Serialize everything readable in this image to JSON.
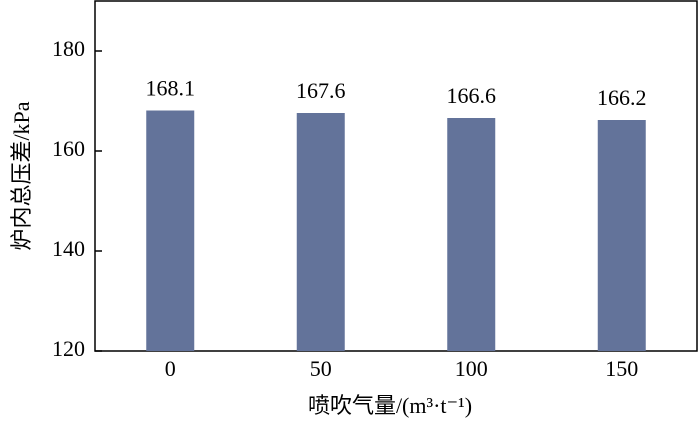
{
  "chart_data": {
    "type": "bar",
    "xlabel": "喷吹气量/(m³·t⁻¹)",
    "ylabel": "炉内总压差/kPa",
    "categories": [
      "0",
      "50",
      "100",
      "150"
    ],
    "values": [
      168.1,
      167.6,
      166.6,
      166.2
    ],
    "color": "#63739a",
    "ylim": [
      120,
      190
    ],
    "yticks": [
      120,
      140,
      160,
      180
    ],
    "grid": false
  }
}
